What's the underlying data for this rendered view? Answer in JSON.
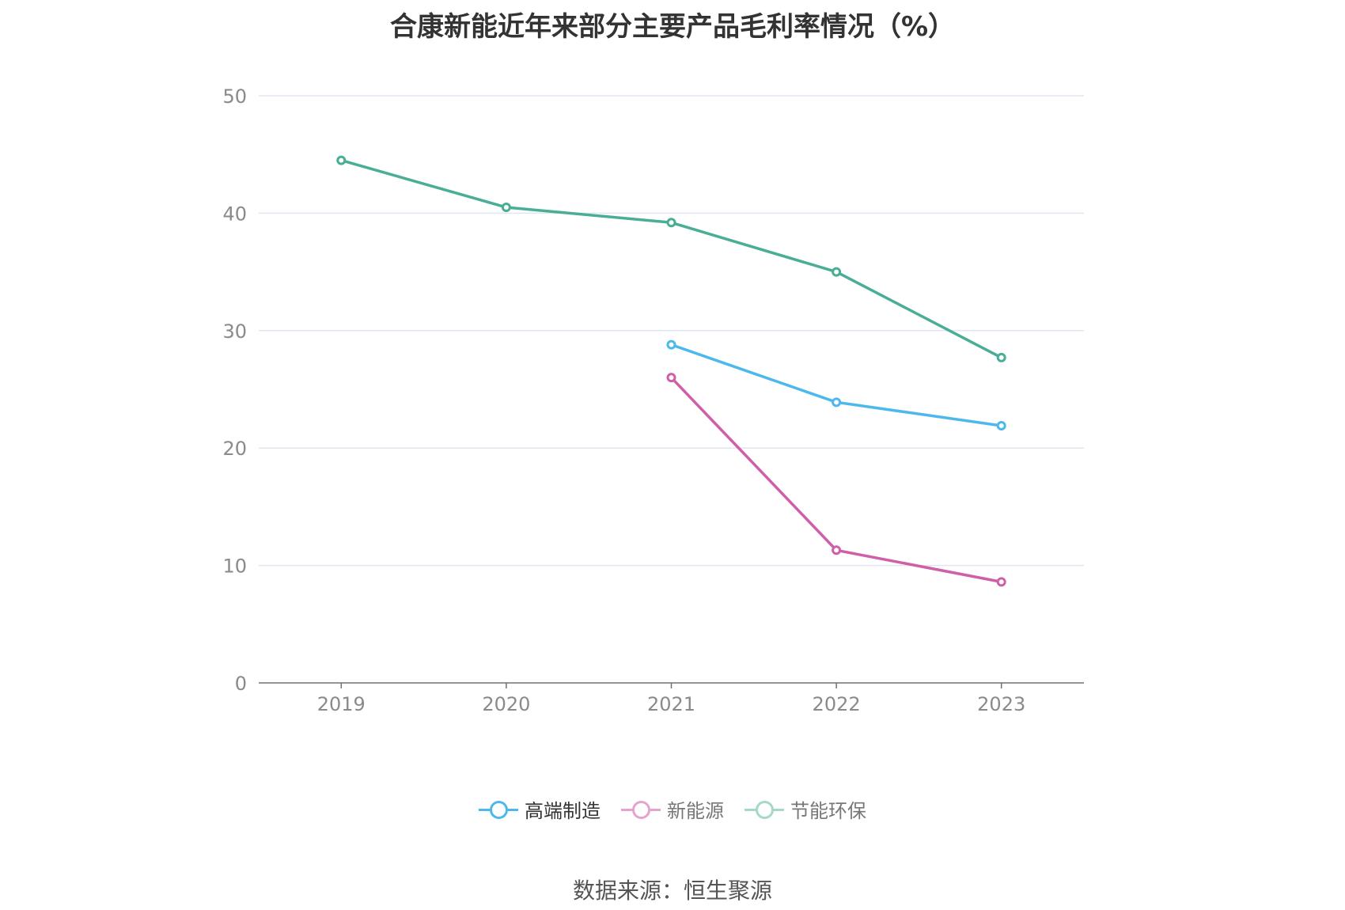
{
  "chart_data": {
    "type": "line",
    "title": "合康新能近年来部分主要产品毛利率情况（%）",
    "categories": [
      "2019",
      "2020",
      "2021",
      "2022",
      "2023"
    ],
    "ylim": [
      0,
      50
    ],
    "yticks": [
      0,
      10,
      20,
      30,
      40,
      50
    ],
    "grid": true,
    "legend_position": "bottom",
    "series": [
      {
        "name": "高端制造",
        "color": "#4db8ec",
        "legend_color": "#4db8ec",
        "values": [
          null,
          null,
          28.8,
          23.9,
          21.9
        ]
      },
      {
        "name": "新能源",
        "color": "#d05fa9",
        "legend_color": "#e6a3cf",
        "values": [
          null,
          null,
          26.0,
          11.3,
          8.6
        ]
      },
      {
        "name": "节能环保",
        "color": "#4aad96",
        "legend_color": "#a3d8cb",
        "values": [
          44.5,
          40.5,
          39.2,
          35.0,
          27.7
        ]
      }
    ],
    "source": "数据来源：恒生聚源"
  }
}
